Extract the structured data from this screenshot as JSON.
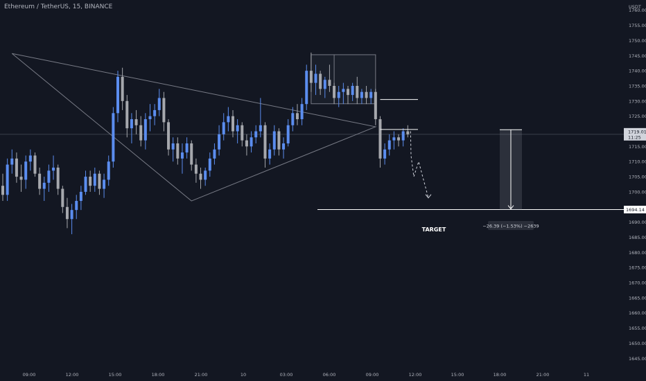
{
  "header": {
    "symbol_title": "Ethereum / TetherUS, 15, BINANCE"
  },
  "price_axis": {
    "currency": "USDT",
    "ticks": [
      "1760.00",
      "1755.00",
      "1750.00",
      "1745.00",
      "1740.00",
      "1735.00",
      "1730.00",
      "1725.00",
      "1720.00",
      "1715.00",
      "1710.00",
      "1705.00",
      "1700.00",
      "1695.00",
      "1690.00",
      "1685.00",
      "1680.00",
      "1675.00",
      "1670.00",
      "1665.00",
      "1660.00",
      "1655.00",
      "1650.00",
      "1645.00"
    ],
    "current_price_label": "1719.01",
    "countdown_label": "11:25",
    "target_price_label": "1694.14"
  },
  "time_axis": {
    "labels": [
      "09:00",
      "12:00",
      "15:00",
      "18:00",
      "21:00",
      "10",
      "03:00",
      "06:00",
      "09:00",
      "12:00",
      "15:00",
      "18:00",
      "21:00",
      "11"
    ]
  },
  "annotations": {
    "target_label": "TARGET",
    "measure_label": "−26.39 (−1.53%) −2639"
  },
  "colors": {
    "up": "#5b8def",
    "down": "#a6a8ad",
    "background": "#131722",
    "line": "#ffffff"
  },
  "chart_data": {
    "type": "candlestick",
    "interval": "15",
    "ylim": [
      1643,
      1762
    ],
    "current_price": 1719.01,
    "target_price": 1694.14,
    "measured_move": {
      "from": 1720.53,
      "to": 1694.14,
      "change": -26.39,
      "percent": -1.53,
      "ticks": -2639
    },
    "candles_ohlc": [
      [
        1702,
        1706,
        1697,
        1699
      ],
      [
        1699,
        1711,
        1697,
        1709
      ],
      [
        1709,
        1714,
        1706,
        1711
      ],
      [
        1711,
        1713,
        1703,
        1705
      ],
      [
        1705,
        1709,
        1700,
        1704
      ],
      [
        1704,
        1712,
        1701,
        1710
      ],
      [
        1710,
        1714,
        1707,
        1712
      ],
      [
        1712,
        1713,
        1705,
        1706
      ],
      [
        1706,
        1708,
        1699,
        1701
      ],
      [
        1701,
        1705,
        1697,
        1703
      ],
      [
        1703,
        1709,
        1700,
        1707
      ],
      [
        1707,
        1712,
        1704,
        1708
      ],
      [
        1708,
        1709,
        1699,
        1701
      ],
      [
        1701,
        1702,
        1693,
        1695
      ],
      [
        1695,
        1698,
        1688,
        1691
      ],
      [
        1691,
        1696,
        1686,
        1694
      ],
      [
        1694,
        1699,
        1691,
        1697
      ],
      [
        1697,
        1702,
        1694,
        1700
      ],
      [
        1700,
        1707,
        1699,
        1705
      ],
      [
        1705,
        1707,
        1700,
        1702
      ],
      [
        1702,
        1708,
        1700,
        1706
      ],
      [
        1706,
        1707,
        1699,
        1701
      ],
      [
        1701,
        1706,
        1698,
        1704
      ],
      [
        1704,
        1712,
        1702,
        1710
      ],
      [
        1710,
        1728,
        1708,
        1726
      ],
      [
        1726,
        1740,
        1723,
        1738
      ],
      [
        1738,
        1741,
        1727,
        1730
      ],
      [
        1730,
        1732,
        1718,
        1721
      ],
      [
        1721,
        1726,
        1716,
        1724
      ],
      [
        1724,
        1727,
        1719,
        1722
      ],
      [
        1722,
        1725,
        1715,
        1717
      ],
      [
        1717,
        1726,
        1714,
        1724
      ],
      [
        1724,
        1729,
        1720,
        1725
      ],
      [
        1725,
        1729,
        1722,
        1727
      ],
      [
        1727,
        1734,
        1725,
        1731
      ],
      [
        1731,
        1733,
        1720,
        1723
      ],
      [
        1723,
        1724,
        1712,
        1714
      ],
      [
        1714,
        1718,
        1710,
        1716
      ],
      [
        1716,
        1718,
        1709,
        1711
      ],
      [
        1711,
        1716,
        1706,
        1713
      ],
      [
        1713,
        1718,
        1711,
        1716
      ],
      [
        1716,
        1717,
        1707,
        1709
      ],
      [
        1709,
        1711,
        1703,
        1706
      ],
      [
        1706,
        1708,
        1701,
        1704
      ],
      [
        1704,
        1708,
        1702,
        1707
      ],
      [
        1707,
        1713,
        1705,
        1711
      ],
      [
        1711,
        1716,
        1709,
        1714
      ],
      [
        1714,
        1722,
        1712,
        1719
      ],
      [
        1719,
        1726,
        1717,
        1723
      ],
      [
        1723,
        1728,
        1720,
        1725
      ],
      [
        1725,
        1727,
        1718,
        1720
      ],
      [
        1720,
        1724,
        1716,
        1722
      ],
      [
        1722,
        1723,
        1715,
        1717
      ],
      [
        1717,
        1719,
        1712,
        1715
      ],
      [
        1715,
        1720,
        1713,
        1718
      ],
      [
        1718,
        1722,
        1716,
        1720
      ],
      [
        1720,
        1731,
        1718,
        1722
      ],
      [
        1722,
        1723,
        1708,
        1711
      ],
      [
        1711,
        1716,
        1709,
        1714
      ],
      [
        1714,
        1722,
        1712,
        1720
      ],
      [
        1720,
        1721,
        1712,
        1714
      ],
      [
        1714,
        1718,
        1711,
        1716
      ],
      [
        1716,
        1724,
        1715,
        1722
      ],
      [
        1722,
        1728,
        1720,
        1726
      ],
      [
        1726,
        1729,
        1722,
        1724
      ],
      [
        1724,
        1731,
        1722,
        1729
      ],
      [
        1729,
        1742,
        1727,
        1740
      ],
      [
        1740,
        1746,
        1733,
        1736
      ],
      [
        1736,
        1742,
        1732,
        1739
      ],
      [
        1739,
        1740,
        1732,
        1734
      ],
      [
        1734,
        1738,
        1731,
        1737
      ],
      [
        1737,
        1742,
        1733,
        1735
      ],
      [
        1735,
        1736,
        1729,
        1731
      ],
      [
        1731,
        1735,
        1728,
        1733
      ],
      [
        1733,
        1736,
        1729,
        1734
      ],
      [
        1734,
        1735,
        1729,
        1732
      ],
      [
        1732,
        1736,
        1730,
        1735
      ],
      [
        1735,
        1738,
        1729,
        1731
      ],
      [
        1731,
        1734,
        1729,
        1733
      ],
      [
        1733,
        1735,
        1729,
        1731
      ],
      [
        1731,
        1734,
        1729,
        1733
      ],
      [
        1733,
        1734,
        1722,
        1724
      ],
      [
        1724,
        1725,
        1708,
        1711
      ],
      [
        1711,
        1716,
        1709,
        1714
      ],
      [
        1714,
        1719,
        1712,
        1717
      ],
      [
        1717,
        1720,
        1714,
        1718
      ],
      [
        1718,
        1719,
        1715,
        1717
      ],
      [
        1717,
        1721,
        1715,
        1720
      ],
      [
        1720,
        1722,
        1718,
        1719
      ]
    ],
    "patterns": {
      "triangle": [
        [
          2,
          1745.7
        ],
        [
          41,
          1697
        ],
        [
          81,
          1721.5
        ]
      ],
      "range_box": {
        "from": 67,
        "to": 81,
        "high": 1745.3,
        "low": 1729.1
      },
      "projection_path": [
        1720,
        1712,
        1705,
        1710,
        1698
      ]
    }
  }
}
